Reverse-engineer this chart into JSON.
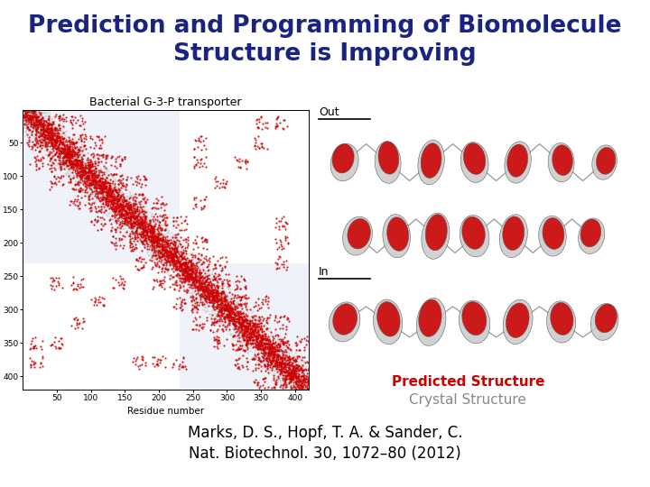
{
  "title_line1": "Prediction and Programming of Biomolecule",
  "title_line2": "Structure is Improving",
  "title_color": "#1a237e",
  "title_fontsize": 19,
  "title_bold": true,
  "bg_color": "#ffffff",
  "predicted_structure_label": "Predicted Structure",
  "predicted_structure_color": "#cc0000",
  "crystal_structure_label": "Crystal Structure",
  "crystal_structure_color": "#888888",
  "label_fontsize": 11,
  "citation_line1": "Marks, D. S., Hopf, T. A. & Sander, C.",
  "citation_line2": "Nat. Biotechnol. 30, 1072–80 (2012)",
  "citation_fontsize": 12,
  "citation_color": "#000000",
  "contact_map_title": "Bacterial G-3-P transporter",
  "contact_map_title_fontsize": 9,
  "out_label": "Out",
  "in_label": "In",
  "annotation_fontsize": 9
}
